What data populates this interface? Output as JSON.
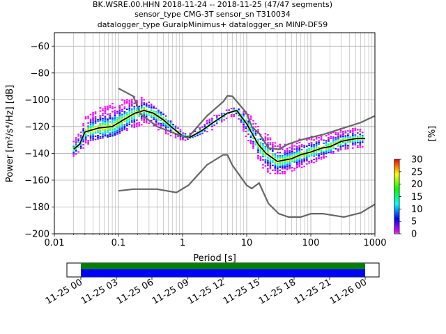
{
  "title_lines": [
    "BK.WSRE.00.HHN   2018-11-24 -- 2018-11-25  (47/47 segments)",
    "sensor_type CMG-3T sensor_sn T310034",
    "datalogger_type GuralpMinimus+ datalogger_sn MINP-DF59"
  ],
  "chart_data": {
    "type": "heatmap",
    "title": "BK.WSRE.00.HHN   2018-11-24 -- 2018-11-25  (47/47 segments)",
    "subtitle": "sensor_type CMG-3T sensor_sn T310034 | datalogger_type GuralpMinimus+ datalogger_sn MINP-DF59",
    "xlabel": "Period [s]",
    "ylabel": "Power [m²/s⁴/Hz] [dB]",
    "xscale": "log",
    "xlim": [
      0.01,
      1000
    ],
    "ylim": [
      -200,
      -50
    ],
    "xticks": [
      0.01,
      0.1,
      1,
      10,
      100,
      1000
    ],
    "xtick_labels": [
      "0.01",
      "0.1",
      "1",
      "10",
      "100",
      "1000"
    ],
    "yticks": [
      -200,
      -180,
      -160,
      -140,
      -120,
      -100,
      -80,
      -60
    ],
    "ytick_labels": [
      "−200",
      "−180",
      "−160",
      "−140",
      "−120",
      "−100",
      "−80",
      "−60"
    ],
    "grid": true,
    "colorbar": {
      "label": "[%]",
      "range": [
        0,
        30
      ],
      "ticks": [
        0,
        5,
        10,
        15,
        20,
        25,
        30
      ],
      "tick_labels": [
        "0",
        "5",
        "10",
        "15",
        "20",
        "25",
        "30"
      ],
      "stops": [
        "#ffffff",
        "#ff00ff",
        "#0000ff",
        "#00ffff",
        "#00ff00",
        "#ffff00",
        "#ff0000"
      ]
    },
    "series": [
      {
        "role": "mean",
        "color": "#000000",
        "x": [
          0.02,
          0.025,
          0.03,
          0.05,
          0.08,
          0.12,
          0.18,
          0.25,
          0.35,
          0.5,
          0.7,
          1.0,
          1.3,
          2.0,
          3.0,
          5.0,
          7.0,
          10,
          15,
          20,
          30,
          50,
          70,
          100,
          150,
          200,
          300,
          500,
          700
        ],
        "y": [
          -137,
          -133,
          -124,
          -121,
          -120,
          -115,
          -110,
          -108,
          -110,
          -115,
          -121,
          -127,
          -128,
          -123,
          -117,
          -110,
          -108,
          -118,
          -133,
          -140,
          -146,
          -144,
          -141,
          -139,
          -136,
          -135,
          -131,
          -129,
          -129
        ]
      },
      {
        "role": "noise_model_high",
        "color": "#666666",
        "x": [
          0.1,
          0.17,
          0.22,
          0.4,
          0.8,
          1.2,
          2.4,
          4.3,
          5.0,
          6.0,
          10,
          12,
          15.6,
          21.9,
          31.6,
          45,
          70,
          101,
          154,
          328,
          600,
          1000
        ],
        "y": [
          -91.5,
          -97.4,
          -110.5,
          -120,
          -125.5,
          -128.5,
          -112,
          -101.5,
          -97,
          -97.5,
          -110,
          -120,
          -125,
          -136,
          -137,
          -133,
          -130,
          -128,
          -126,
          -121,
          -117,
          -112
        ]
      },
      {
        "role": "noise_model_low",
        "color": "#666666",
        "x": [
          0.1,
          0.17,
          0.4,
          0.8,
          1.24,
          2.4,
          4.3,
          5.0,
          6.0,
          10,
          12,
          15.6,
          21.9,
          31.6,
          45,
          70,
          101,
          154,
          328,
          600,
          1000
        ],
        "y": [
          -168,
          -166.7,
          -166.7,
          -169.2,
          -163.7,
          -148.6,
          -141.1,
          -141.1,
          -149,
          -163.8,
          -166.2,
          -162.1,
          -177.5,
          -185,
          -187.5,
          -187.5,
          -185,
          -185,
          -187.5,
          -184.4,
          -178
        ]
      }
    ],
    "density": [
      {
        "x": 0.02,
        "y_range": [
          -142,
          -130
        ]
      },
      {
        "x": 0.04,
        "y_range": [
          -130,
          -102
        ]
      },
      {
        "x": 0.08,
        "y_range": [
          -127,
          -94
        ]
      },
      {
        "x": 0.15,
        "y_range": [
          -122,
          -95
        ]
      },
      {
        "x": 0.25,
        "y_range": [
          -118,
          -98
        ]
      },
      {
        "x": 0.5,
        "y_range": [
          -130,
          -110
        ]
      },
      {
        "x": 1.0,
        "y_range": [
          -131,
          -124
        ]
      },
      {
        "x": 3.0,
        "y_range": [
          -122,
          -112
        ]
      },
      {
        "x": 6.0,
        "y_range": [
          -112,
          -105
        ]
      },
      {
        "x": 10,
        "y_range": [
          -128,
          -108
        ]
      },
      {
        "x": 20,
        "y_range": [
          -155,
          -125
        ]
      },
      {
        "x": 40,
        "y_range": [
          -155,
          -132
        ]
      },
      {
        "x": 100,
        "y_range": [
          -148,
          -125
        ]
      },
      {
        "x": 300,
        "y_range": [
          -137,
          -118
        ]
      },
      {
        "x": 700,
        "y_range": [
          -135,
          -122
        ]
      }
    ],
    "timeline": {
      "tick_labels": [
        "11-25 00",
        "11-25 03",
        "11-25 06",
        "11-25 09",
        "11-25 12",
        "11-25 15",
        "11-25 18",
        "11-25 21",
        "11-26 00"
      ],
      "bars": [
        {
          "role": "data",
          "color": "#0000ff"
        },
        {
          "role": "gaps",
          "color": "#008000"
        }
      ]
    }
  }
}
